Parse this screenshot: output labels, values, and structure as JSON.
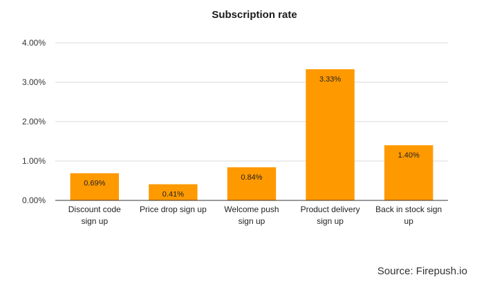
{
  "chart_data": {
    "type": "bar",
    "title": "Subscription rate",
    "categories": [
      [
        "Discount code",
        "sign up"
      ],
      [
        "Price drop sign up"
      ],
      [
        "Welcome push",
        "sign up"
      ],
      [
        "Product delivery",
        "sign up"
      ],
      [
        "Back in stock sign",
        "up"
      ]
    ],
    "values": [
      0.69,
      0.41,
      0.84,
      3.33,
      1.4
    ],
    "data_labels": [
      "0.69%",
      "0.41%",
      "0.84%",
      "3.33%",
      "1.40%"
    ],
    "ylim": [
      0,
      4
    ],
    "yticks": [
      0,
      1,
      2,
      3,
      4
    ],
    "ytick_labels": [
      "0.00%",
      "1.00%",
      "2.00%",
      "3.00%",
      "4.00%"
    ],
    "xlabel": "",
    "ylabel": "",
    "grid": true,
    "legend": "none",
    "bar_color": "#FF9900",
    "grid_color": "#D9D9D9",
    "axis_color": "#333333"
  },
  "footer": {
    "source": "Source: Firepush.io"
  }
}
